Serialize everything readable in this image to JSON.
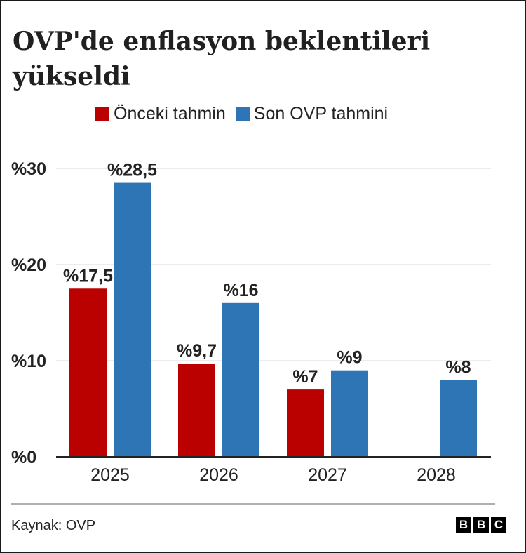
{
  "title": "OVP'de enflasyon beklentileri yükseldi",
  "legend": [
    {
      "label": "Önceki tahmin",
      "color": "#bb0000"
    },
    {
      "label": "Son OVP tahmini",
      "color": "#2e75b6"
    }
  ],
  "source": "Kaynak: OVP",
  "logo": [
    "B",
    "B",
    "C"
  ],
  "chart_data": {
    "type": "bar",
    "categories": [
      "2025",
      "2026",
      "2027",
      "2028"
    ],
    "series": [
      {
        "name": "Önceki tahmin",
        "color": "#bb0000",
        "values": [
          17.5,
          9.7,
          7,
          null
        ],
        "labels": [
          "%17,5",
          "%9,7",
          "%7",
          ""
        ]
      },
      {
        "name": "Son OVP tahmini",
        "color": "#2e75b6",
        "values": [
          28.5,
          16,
          9,
          8
        ],
        "labels": [
          "%28,5",
          "%16",
          "%9",
          "%8"
        ]
      }
    ],
    "yticks": [
      0,
      10,
      20,
      30
    ],
    "ytick_labels": [
      "%0",
      "%10",
      "%20",
      "%30"
    ],
    "ylim": [
      0,
      30
    ],
    "grid": true,
    "legend_position": "top"
  }
}
